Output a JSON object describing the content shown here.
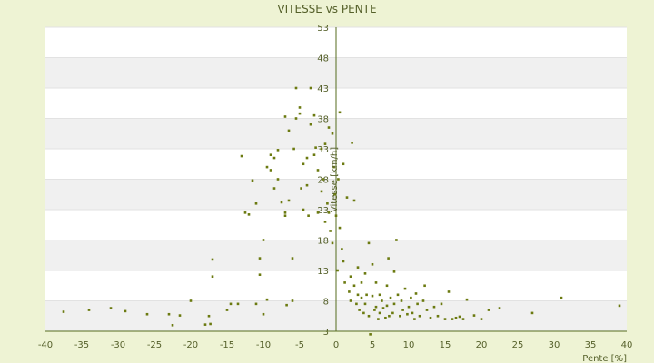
{
  "chart_data": {
    "type": "scatter",
    "title": "VITESSE vs PENTE",
    "xlabel": "Pente [%]",
    "ylabel": "Vitesse [km/h]",
    "xlim": [
      -40,
      40
    ],
    "ylim": [
      3,
      53
    ],
    "xticks": [
      -40,
      -35,
      -30,
      -25,
      -20,
      -15,
      -10,
      -5,
      0,
      5,
      10,
      15,
      20,
      25,
      30,
      35,
      40
    ],
    "yticks": [
      3,
      8,
      13,
      18,
      23,
      28,
      33,
      38,
      43,
      48,
      53
    ],
    "grid": "horizontal bands",
    "colors": {
      "background": "#eef3d4",
      "plot_background": "#ffffff",
      "band": "#f0f0f0",
      "axis": "#556b1e",
      "marker": "#6b7a10"
    },
    "points": [
      [
        -37.5,
        6.2
      ],
      [
        -34,
        6.5
      ],
      [
        -31,
        6.8
      ],
      [
        -29,
        6.3
      ],
      [
        -26,
        5.8
      ],
      [
        -23,
        5.8
      ],
      [
        -22.5,
        4.0
      ],
      [
        -21.5,
        5.6
      ],
      [
        -20,
        8.0
      ],
      [
        -18,
        4.1
      ],
      [
        -17.5,
        5.5
      ],
      [
        -17.3,
        4.2
      ],
      [
        -17,
        12.0
      ],
      [
        -17,
        14.8
      ],
      [
        -15,
        6.5
      ],
      [
        -14.5,
        7.5
      ],
      [
        -13.5,
        7.5
      ],
      [
        -13,
        31.8
      ],
      [
        -12.5,
        22.5
      ],
      [
        -12,
        22.2
      ],
      [
        -11.5,
        27.8
      ],
      [
        -11,
        24.0
      ],
      [
        -11,
        7.5
      ],
      [
        -10.5,
        12.3
      ],
      [
        -10.5,
        15.0
      ],
      [
        -10,
        18.0
      ],
      [
        -10,
        5.8
      ],
      [
        -9.5,
        8.2
      ],
      [
        -9.5,
        30.0
      ],
      [
        -9,
        29.5
      ],
      [
        -9,
        32.0
      ],
      [
        -8.5,
        26.5
      ],
      [
        -8.5,
        31.5
      ],
      [
        -8,
        32.8
      ],
      [
        -8,
        28.0
      ],
      [
        -7.5,
        24.2
      ],
      [
        -7,
        22.5
      ],
      [
        -7,
        22.0
      ],
      [
        -7,
        38.3
      ],
      [
        -6.8,
        7.3
      ],
      [
        -6.5,
        24.5
      ],
      [
        -6.5,
        36.0
      ],
      [
        -6,
        15.0
      ],
      [
        -6,
        8.0
      ],
      [
        -5.8,
        33.0
      ],
      [
        -5.5,
        43.0
      ],
      [
        -5.5,
        38.0
      ],
      [
        -5,
        39.8
      ],
      [
        -5,
        38.8
      ],
      [
        -4.8,
        26.5
      ],
      [
        -4.5,
        30.5
      ],
      [
        -4.5,
        23.0
      ],
      [
        -4,
        31.5
      ],
      [
        -4,
        27.0
      ],
      [
        -3.8,
        22.0
      ],
      [
        -3.5,
        43.0
      ],
      [
        -3.5,
        37.0
      ],
      [
        -3,
        38.5
      ],
      [
        -3,
        32.0
      ],
      [
        -2.8,
        33.2
      ],
      [
        -2.5,
        29.5
      ],
      [
        -2.5,
        22.5
      ],
      [
        -2,
        33.0
      ],
      [
        -2,
        26.0
      ],
      [
        -1.8,
        28.0
      ],
      [
        -1.5,
        33.8
      ],
      [
        -1.5,
        21.0
      ],
      [
        -1.2,
        24.0
      ],
      [
        -1,
        36.5
      ],
      [
        -1,
        22.5
      ],
      [
        -0.8,
        19.5
      ],
      [
        -0.5,
        35.5
      ],
      [
        -0.5,
        17.5
      ],
      [
        -0.3,
        30.0
      ],
      [
        -0.2,
        25.5
      ],
      [
        0,
        22.0
      ],
      [
        0.2,
        13.0
      ],
      [
        0.3,
        28.0
      ],
      [
        0.5,
        39.0
      ],
      [
        0.5,
        20.0
      ],
      [
        0.8,
        16.5
      ],
      [
        1,
        30.5
      ],
      [
        1,
        14.5
      ],
      [
        1.2,
        11.0
      ],
      [
        1.5,
        25.0
      ],
      [
        1.8,
        9.5
      ],
      [
        2,
        12.0
      ],
      [
        2,
        8.0
      ],
      [
        2.2,
        34.0
      ],
      [
        2.5,
        24.5
      ],
      [
        2.5,
        10.5
      ],
      [
        2.8,
        7.5
      ],
      [
        3,
        13.5
      ],
      [
        3,
        9.0
      ],
      [
        3.2,
        6.5
      ],
      [
        3.5,
        11.0
      ],
      [
        3.5,
        8.5
      ],
      [
        3.8,
        6.0
      ],
      [
        4,
        12.5
      ],
      [
        4,
        7.5
      ],
      [
        4.2,
        9.0
      ],
      [
        4.5,
        17.5
      ],
      [
        4.5,
        5.5
      ],
      [
        4.7,
        2.5
      ],
      [
        5,
        14.0
      ],
      [
        5,
        8.8
      ],
      [
        5.3,
        6.5
      ],
      [
        5.5,
        11.0
      ],
      [
        5.5,
        7.0
      ],
      [
        5.8,
        5.0
      ],
      [
        6,
        9.0
      ],
      [
        6,
        6.0
      ],
      [
        6.3,
        8.0
      ],
      [
        6.5,
        6.8
      ],
      [
        6.8,
        5.2
      ],
      [
        7,
        10.5
      ],
      [
        7,
        7.2
      ],
      [
        7.2,
        15.0
      ],
      [
        7.3,
        5.5
      ],
      [
        7.5,
        8.5
      ],
      [
        7.8,
        6.0
      ],
      [
        8,
        12.8
      ],
      [
        8,
        7.5
      ],
      [
        8.3,
        18.0
      ],
      [
        8.5,
        9.0
      ],
      [
        8.8,
        5.5
      ],
      [
        9,
        8.0
      ],
      [
        9.2,
        6.5
      ],
      [
        9.5,
        10.0
      ],
      [
        9.8,
        5.8
      ],
      [
        10,
        7.0
      ],
      [
        10.3,
        8.5
      ],
      [
        10.5,
        6.0
      ],
      [
        10.8,
        5.0
      ],
      [
        11,
        9.2
      ],
      [
        11.2,
        7.5
      ],
      [
        11.5,
        5.5
      ],
      [
        12,
        8.0
      ],
      [
        12.2,
        10.5
      ],
      [
        12.5,
        6.5
      ],
      [
        13,
        5.2
      ],
      [
        13.5,
        7.0
      ],
      [
        14,
        5.5
      ],
      [
        14.5,
        7.5
      ],
      [
        15,
        5.0
      ],
      [
        15.5,
        9.5
      ],
      [
        16,
        5.0
      ],
      [
        16.5,
        5.2
      ],
      [
        17,
        5.4
      ],
      [
        17.5,
        5.0
      ],
      [
        18,
        8.2
      ],
      [
        19,
        5.6
      ],
      [
        20,
        5.0
      ],
      [
        21,
        6.5
      ],
      [
        22.5,
        6.8
      ],
      [
        27,
        6.0
      ],
      [
        31,
        8.5
      ],
      [
        39,
        7.2
      ]
    ]
  }
}
